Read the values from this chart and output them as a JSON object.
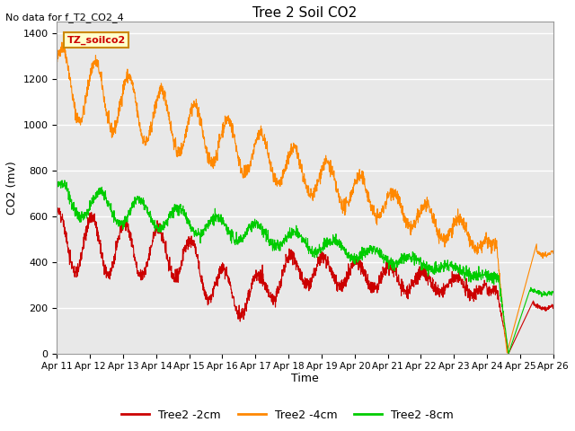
{
  "title": "Tree 2 Soil CO2",
  "subtitle": "No data for f_T2_CO2_4",
  "ylabel": "CO2 (mv)",
  "xlabel": "Time",
  "legend_label": "TZ_soilco2",
  "ylim": [
    0,
    1450
  ],
  "yticks": [
    0,
    200,
    400,
    600,
    800,
    1000,
    1200,
    1400
  ],
  "x_labels": [
    "Apr 11",
    "Apr 12",
    "Apr 13",
    "Apr 14",
    "Apr 15",
    "Apr 16",
    "Apr 17",
    "Apr 18",
    "Apr 19",
    "Apr 20",
    "Apr 21",
    "Apr 22",
    "Apr 23",
    "Apr 24",
    "Apr 25",
    "Apr 26"
  ],
  "line_colors": {
    "2cm": "#cc0000",
    "4cm": "#ff8800",
    "8cm": "#00cc00"
  },
  "legend_entries": [
    "Tree2 -2cm",
    "Tree2 -4cm",
    "Tree2 -8cm"
  ],
  "background_plot": "#e8e8e8",
  "background_fig": "#ffffff",
  "grid_color": "#ffffff"
}
